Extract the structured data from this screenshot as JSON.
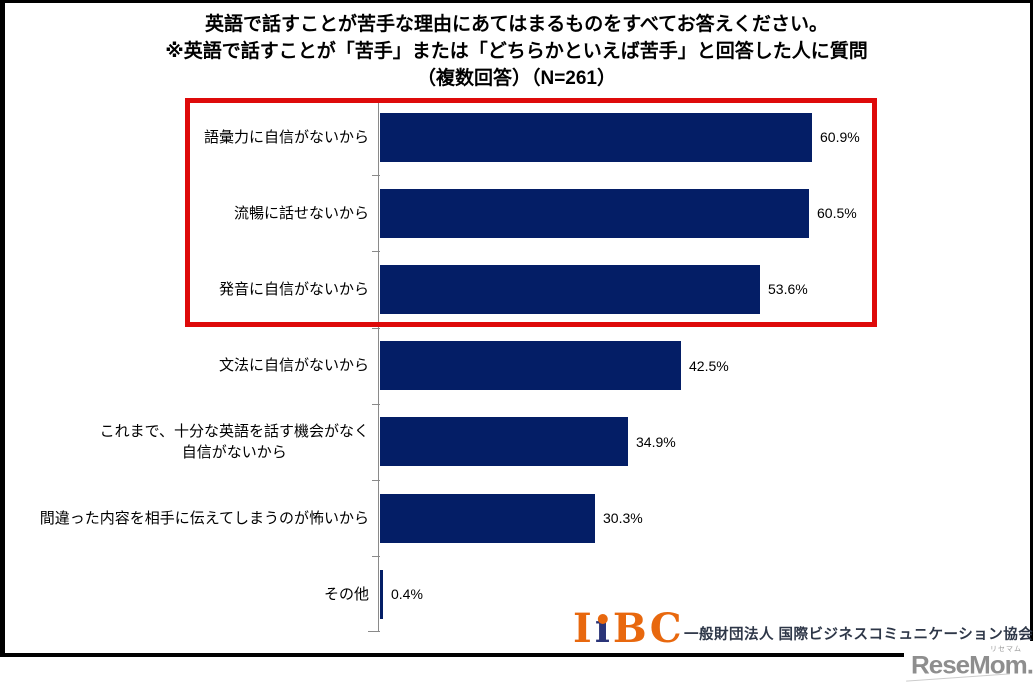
{
  "header": {
    "line1": "英語で話すことが苦手な理由にあてはまるものをすべてお答えください。",
    "line2": "※英語で話すことが「苦手」または「どちらかといえば苦手」と回答した人に質問",
    "line3": "（複数回答）（N=261）"
  },
  "chart_data": {
    "type": "bar",
    "orientation": "horizontal",
    "title": "英語で話すことが苦手な理由にあてはまるものをすべてお答えください。 ※英語で話すことが「苦手」または「どちらかといえば苦手」と回答した人に質問（複数回答）（N=261）",
    "n": 261,
    "unit": "%",
    "xlim": [
      0,
      70
    ],
    "grid": false,
    "legend": "none",
    "categories": [
      "語彙力に自信がないから",
      "流暢に話せないから",
      "発音に自信がないから",
      "文法に自信がないから",
      "これまで、十分な英語を話す機会がなく\n自信がないから",
      "間違った内容を相手に伝えてしまうのが怖いから",
      "その他"
    ],
    "values": [
      60.9,
      60.5,
      53.6,
      42.5,
      34.9,
      30.3,
      0.4
    ],
    "value_labels": [
      "60.9%",
      "60.5%",
      "53.6%",
      "42.5%",
      "34.9%",
      "30.3%",
      "0.4%"
    ],
    "bar_color": "#041e66",
    "highlight_box": {
      "rows": [
        0,
        1,
        2
      ],
      "color": "#de0a0a"
    }
  },
  "footer": {
    "logo": {
      "letters": [
        {
          "ch": "I",
          "color": "#e8680e"
        },
        {
          "ch": "i",
          "color": "#2a3478",
          "dot_color": "#e8680e"
        },
        {
          "ch": "B",
          "color": "#e8680e"
        },
        {
          "ch": "C",
          "color": "#e8680e"
        }
      ]
    },
    "org_name": "一般財団法人 国際ビジネスコミュニケーション協会"
  },
  "watermark": {
    "text": "ReseMom.",
    "ruby": "リセマム",
    "color": "#8e8e8e"
  }
}
